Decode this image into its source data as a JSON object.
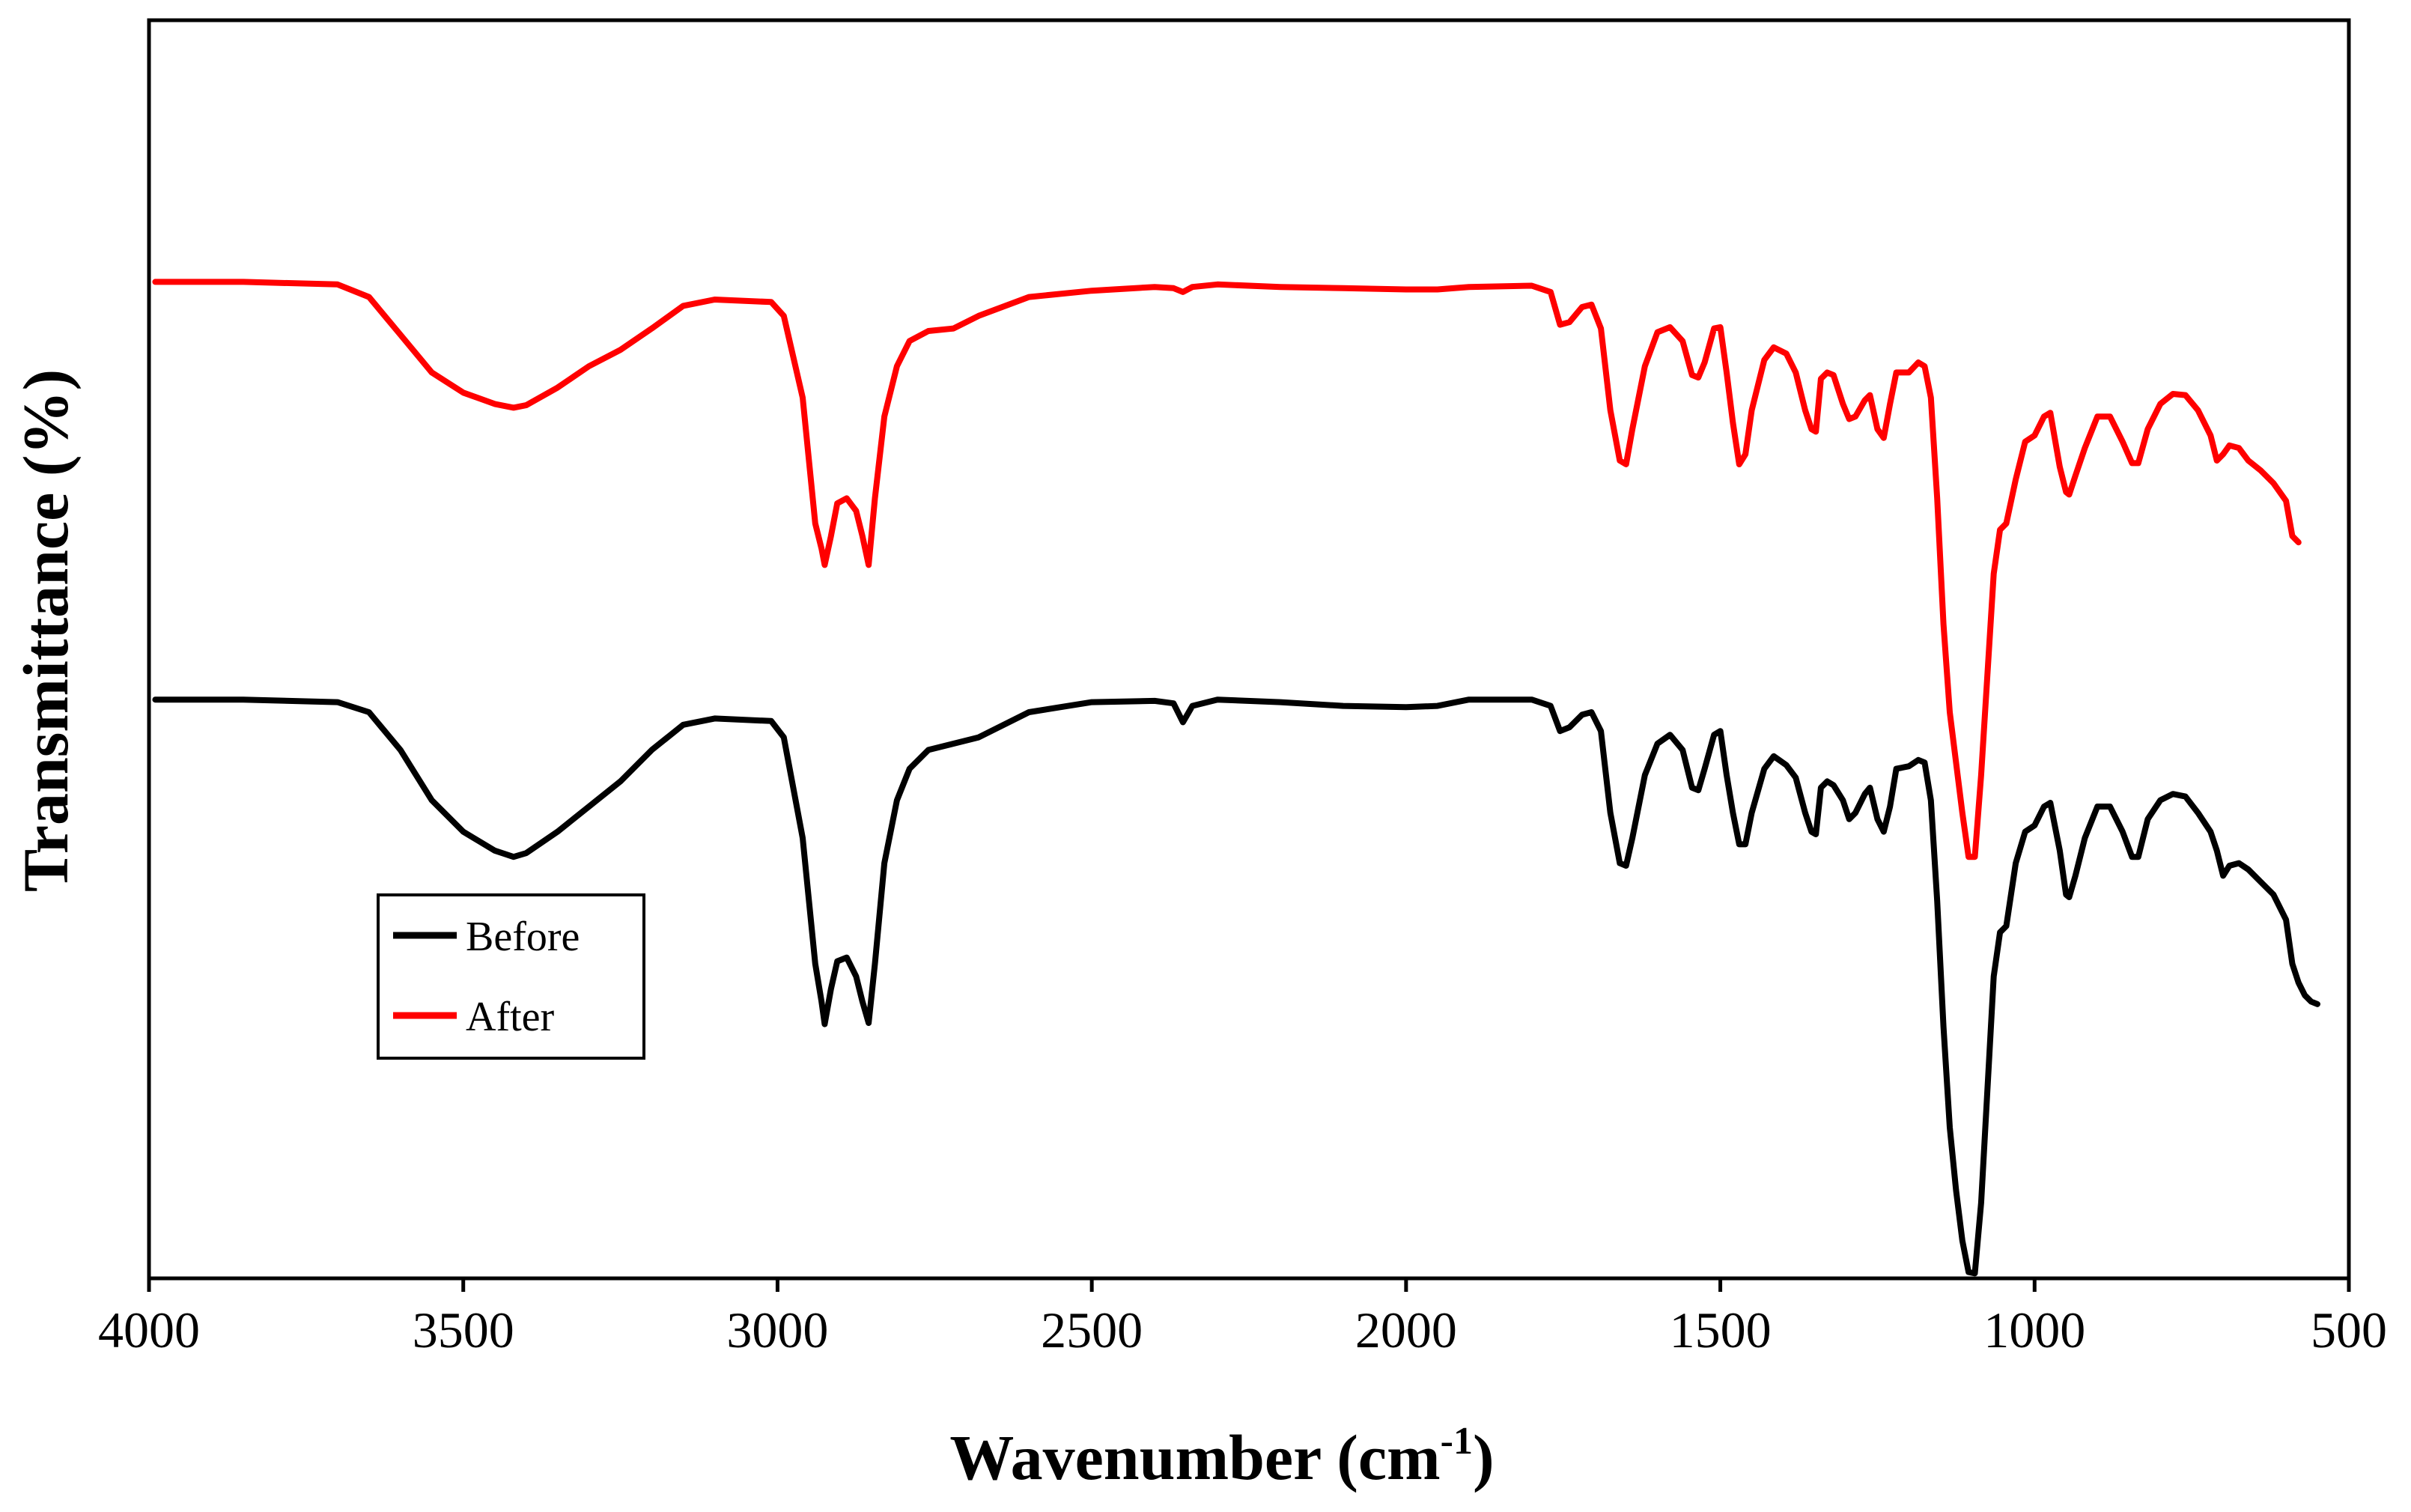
{
  "chart_data": {
    "type": "line",
    "title": "",
    "xlabel": "Wavenumber (cm",
    "xlabel_sup": "-1",
    "xlabel_close": ")",
    "ylabel": "Transmittance (%)",
    "xlim": [
      4000,
      500
    ],
    "ylim": [
      0,
      100
    ],
    "x_ticks": [
      "4000",
      "3500",
      "3000",
      "2500",
      "2000",
      "1500",
      "1000",
      "500"
    ],
    "y_ticks": [],
    "grid": false,
    "legend_position": "lower-left",
    "series": [
      {
        "name": "Before",
        "color": "#000000",
        "points": [
          [
            3990,
            46
          ],
          [
            3850,
            46
          ],
          [
            3700,
            45.8
          ],
          [
            3650,
            45
          ],
          [
            3600,
            42
          ],
          [
            3550,
            38
          ],
          [
            3500,
            35.5
          ],
          [
            3450,
            34
          ],
          [
            3420,
            33.5
          ],
          [
            3400,
            33.8
          ],
          [
            3350,
            35.5
          ],
          [
            3300,
            37.5
          ],
          [
            3250,
            39.5
          ],
          [
            3200,
            42
          ],
          [
            3150,
            44
          ],
          [
            3100,
            44.5
          ],
          [
            3010,
            44.3
          ],
          [
            2990,
            43
          ],
          [
            2960,
            35
          ],
          [
            2940,
            25
          ],
          [
            2930,
            22
          ],
          [
            2925,
            20.2
          ],
          [
            2915,
            23
          ],
          [
            2905,
            25.2
          ],
          [
            2890,
            25.5
          ],
          [
            2875,
            24
          ],
          [
            2865,
            22
          ],
          [
            2855,
            20.3
          ],
          [
            2845,
            25
          ],
          [
            2830,
            33
          ],
          [
            2810,
            38
          ],
          [
            2790,
            40.5
          ],
          [
            2760,
            42
          ],
          [
            2720,
            42.5
          ],
          [
            2680,
            43
          ],
          [
            2600,
            45
          ],
          [
            2500,
            45.8
          ],
          [
            2400,
            45.9
          ],
          [
            2370,
            45.7
          ],
          [
            2355,
            44.2
          ],
          [
            2340,
            45.5
          ],
          [
            2300,
            46
          ],
          [
            2200,
            45.8
          ],
          [
            2100,
            45.5
          ],
          [
            2000,
            45.4
          ],
          [
            1950,
            45.5
          ],
          [
            1900,
            46
          ],
          [
            1800,
            46
          ],
          [
            1770,
            45.5
          ],
          [
            1755,
            43.5
          ],
          [
            1740,
            43.8
          ],
          [
            1720,
            44.8
          ],
          [
            1705,
            45
          ],
          [
            1690,
            43.5
          ],
          [
            1675,
            37
          ],
          [
            1660,
            33
          ],
          [
            1650,
            32.8
          ],
          [
            1640,
            35
          ],
          [
            1620,
            40
          ],
          [
            1600,
            42.5
          ],
          [
            1580,
            43.2
          ],
          [
            1560,
            42
          ],
          [
            1545,
            39
          ],
          [
            1535,
            38.8
          ],
          [
            1525,
            40.5
          ],
          [
            1510,
            43.2
          ],
          [
            1500,
            43.5
          ],
          [
            1490,
            40
          ],
          [
            1480,
            37
          ],
          [
            1470,
            34.5
          ],
          [
            1460,
            34.5
          ],
          [
            1450,
            37
          ],
          [
            1430,
            40.5
          ],
          [
            1415,
            41.5
          ],
          [
            1395,
            40.8
          ],
          [
            1380,
            39.8
          ],
          [
            1365,
            37
          ],
          [
            1355,
            35.5
          ],
          [
            1348,
            35.3
          ],
          [
            1340,
            39
          ],
          [
            1330,
            39.5
          ],
          [
            1320,
            39.2
          ],
          [
            1305,
            38
          ],
          [
            1295,
            36.5
          ],
          [
            1285,
            37
          ],
          [
            1270,
            38.5
          ],
          [
            1262,
            39
          ],
          [
            1250,
            36.5
          ],
          [
            1240,
            35.5
          ],
          [
            1230,
            37.5
          ],
          [
            1220,
            40.5
          ],
          [
            1200,
            40.7
          ],
          [
            1185,
            41.2
          ],
          [
            1175,
            41
          ],
          [
            1165,
            38
          ],
          [
            1155,
            30
          ],
          [
            1145,
            20
          ],
          [
            1135,
            12
          ],
          [
            1125,
            7
          ],
          [
            1115,
            3
          ],
          [
            1105,
            0.5
          ],
          [
            1095,
            0.4
          ],
          [
            1085,
            6
          ],
          [
            1075,
            15
          ],
          [
            1065,
            24
          ],
          [
            1055,
            27.5
          ],
          [
            1045,
            28
          ],
          [
            1030,
            33
          ],
          [
            1015,
            35.5
          ],
          [
            1000,
            36
          ],
          [
            985,
            37.5
          ],
          [
            975,
            37.8
          ],
          [
            960,
            34
          ],
          [
            950,
            30.5
          ],
          [
            945,
            30.3
          ],
          [
            935,
            32
          ],
          [
            920,
            35
          ],
          [
            900,
            37.5
          ],
          [
            880,
            37.5
          ],
          [
            860,
            35.5
          ],
          [
            845,
            33.5
          ],
          [
            835,
            33.5
          ],
          [
            820,
            36.5
          ],
          [
            800,
            38
          ],
          [
            780,
            38.5
          ],
          [
            760,
            38.3
          ],
          [
            740,
            37
          ],
          [
            720,
            35.5
          ],
          [
            710,
            34
          ],
          [
            700,
            32
          ],
          [
            690,
            32.8
          ],
          [
            675,
            33
          ],
          [
            660,
            32.5
          ],
          [
            640,
            31.5
          ],
          [
            620,
            30.5
          ],
          [
            600,
            28.5
          ],
          [
            590,
            25
          ],
          [
            580,
            23.5
          ],
          [
            570,
            22.5
          ],
          [
            560,
            22
          ],
          [
            550,
            21.8
          ]
        ]
      },
      {
        "name": "After",
        "color": "#ff0000",
        "points": [
          [
            3990,
            79.2
          ],
          [
            3850,
            79.2
          ],
          [
            3700,
            79
          ],
          [
            3650,
            78
          ],
          [
            3600,
            75
          ],
          [
            3550,
            72
          ],
          [
            3500,
            70.4
          ],
          [
            3450,
            69.5
          ],
          [
            3420,
            69.2
          ],
          [
            3400,
            69.4
          ],
          [
            3350,
            70.8
          ],
          [
            3300,
            72.5
          ],
          [
            3250,
            73.8
          ],
          [
            3200,
            75.5
          ],
          [
            3150,
            77.3
          ],
          [
            3100,
            77.8
          ],
          [
            3010,
            77.6
          ],
          [
            2990,
            76.5
          ],
          [
            2960,
            70
          ],
          [
            2940,
            60
          ],
          [
            2930,
            58
          ],
          [
            2925,
            56.7
          ],
          [
            2915,
            59
          ],
          [
            2905,
            61.6
          ],
          [
            2890,
            62
          ],
          [
            2875,
            61
          ],
          [
            2865,
            59
          ],
          [
            2855,
            56.7
          ],
          [
            2845,
            62
          ],
          [
            2830,
            68.5
          ],
          [
            2810,
            72.5
          ],
          [
            2790,
            74.5
          ],
          [
            2760,
            75.3
          ],
          [
            2720,
            75.5
          ],
          [
            2680,
            76.5
          ],
          [
            2600,
            78
          ],
          [
            2500,
            78.5
          ],
          [
            2400,
            78.8
          ],
          [
            2370,
            78.7
          ],
          [
            2355,
            78.4
          ],
          [
            2340,
            78.8
          ],
          [
            2300,
            79
          ],
          [
            2200,
            78.8
          ],
          [
            2100,
            78.7
          ],
          [
            2000,
            78.6
          ],
          [
            1950,
            78.6
          ],
          [
            1900,
            78.8
          ],
          [
            1800,
            78.9
          ],
          [
            1770,
            78.4
          ],
          [
            1755,
            75.8
          ],
          [
            1740,
            76
          ],
          [
            1720,
            77.2
          ],
          [
            1705,
            77.4
          ],
          [
            1690,
            75.5
          ],
          [
            1675,
            69
          ],
          [
            1660,
            65
          ],
          [
            1650,
            64.7
          ],
          [
            1640,
            67.5
          ],
          [
            1620,
            72.5
          ],
          [
            1600,
            75.2
          ],
          [
            1580,
            75.6
          ],
          [
            1560,
            74.5
          ],
          [
            1545,
            71.8
          ],
          [
            1535,
            71.6
          ],
          [
            1525,
            72.8
          ],
          [
            1510,
            75.5
          ],
          [
            1500,
            75.6
          ],
          [
            1490,
            72
          ],
          [
            1480,
            68
          ],
          [
            1470,
            64.7
          ],
          [
            1460,
            65.5
          ],
          [
            1450,
            69
          ],
          [
            1430,
            73
          ],
          [
            1415,
            74
          ],
          [
            1395,
            73.5
          ],
          [
            1380,
            72
          ],
          [
            1365,
            69
          ],
          [
            1355,
            67.5
          ],
          [
            1348,
            67.3
          ],
          [
            1340,
            71.5
          ],
          [
            1330,
            72
          ],
          [
            1320,
            71.8
          ],
          [
            1305,
            69.5
          ],
          [
            1295,
            68.3
          ],
          [
            1285,
            68.5
          ],
          [
            1270,
            69.8
          ],
          [
            1262,
            70.2
          ],
          [
            1250,
            67.5
          ],
          [
            1240,
            66.8
          ],
          [
            1230,
            69.5
          ],
          [
            1220,
            72
          ],
          [
            1200,
            72
          ],
          [
            1185,
            72.8
          ],
          [
            1175,
            72.5
          ],
          [
            1165,
            70
          ],
          [
            1155,
            62
          ],
          [
            1145,
            52
          ],
          [
            1135,
            45
          ],
          [
            1125,
            41
          ],
          [
            1115,
            37
          ],
          [
            1105,
            33.5
          ],
          [
            1095,
            33.5
          ],
          [
            1085,
            40
          ],
          [
            1075,
            48
          ],
          [
            1065,
            56
          ],
          [
            1055,
            59.5
          ],
          [
            1045,
            60
          ],
          [
            1030,
            63.5
          ],
          [
            1015,
            66.5
          ],
          [
            1000,
            67
          ],
          [
            985,
            68.5
          ],
          [
            975,
            68.8
          ],
          [
            960,
            64.5
          ],
          [
            950,
            62.5
          ],
          [
            945,
            62.3
          ],
          [
            935,
            63.8
          ],
          [
            920,
            66
          ],
          [
            900,
            68.5
          ],
          [
            880,
            68.5
          ],
          [
            860,
            66.5
          ],
          [
            845,
            64.8
          ],
          [
            835,
            64.8
          ],
          [
            820,
            67.5
          ],
          [
            800,
            69.5
          ],
          [
            780,
            70.3
          ],
          [
            760,
            70.2
          ],
          [
            740,
            69
          ],
          [
            720,
            67
          ],
          [
            710,
            65
          ],
          [
            700,
            65.5
          ],
          [
            690,
            66.2
          ],
          [
            675,
            66
          ],
          [
            660,
            65
          ],
          [
            640,
            64.2
          ],
          [
            620,
            63.2
          ],
          [
            600,
            61.8
          ],
          [
            590,
            59
          ],
          [
            580,
            58.5
          ]
        ]
      }
    ]
  }
}
